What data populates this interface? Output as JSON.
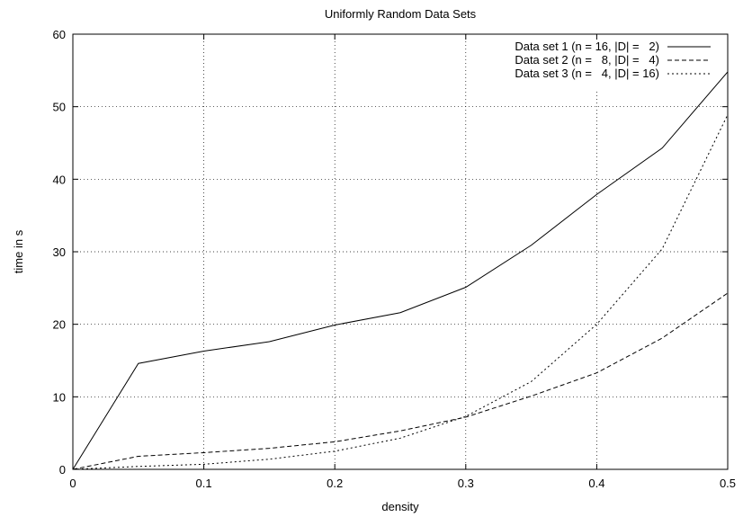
{
  "chart_data": {
    "type": "line",
    "title": "Uniformly Random Data Sets",
    "xlabel": "density",
    "ylabel": "time in s",
    "xlim": [
      0,
      0.5
    ],
    "ylim": [
      0,
      60
    ],
    "x_ticks": [
      0,
      0.1,
      0.2,
      0.3,
      0.4,
      0.5
    ],
    "x_tick_labels": [
      "0",
      "0.1",
      "0.2",
      "0.3",
      "0.4",
      "0.5"
    ],
    "y_ticks": [
      0,
      10,
      20,
      30,
      40,
      50,
      60
    ],
    "y_tick_labels": [
      "0",
      "10",
      "20",
      "30",
      "40",
      "50",
      "60"
    ],
    "grid": true,
    "legend_position": "top-right",
    "x": [
      0,
      0.05,
      0.1,
      0.15,
      0.2,
      0.25,
      0.3,
      0.35,
      0.4,
      0.45,
      0.5
    ],
    "series": [
      {
        "name": "Data set 1 (n = 16, |D| =   2)",
        "style": "solid",
        "values": [
          0,
          14.6,
          16.3,
          17.6,
          19.9,
          21.6,
          25.1,
          30.9,
          37.9,
          44.3,
          54.8
        ]
      },
      {
        "name": "Data set 2 (n =   8, |D| =   4)",
        "style": "dashed",
        "values": [
          0,
          1.8,
          2.3,
          2.9,
          3.8,
          5.3,
          7.2,
          10.1,
          13.3,
          18.1,
          24.3
        ]
      },
      {
        "name": "Data set 3 (n =   4, |D| = 16)",
        "style": "dotted",
        "values": [
          0,
          0.4,
          0.7,
          1.4,
          2.5,
          4.3,
          7.3,
          12.1,
          20.0,
          30.4,
          48.9
        ]
      }
    ]
  }
}
